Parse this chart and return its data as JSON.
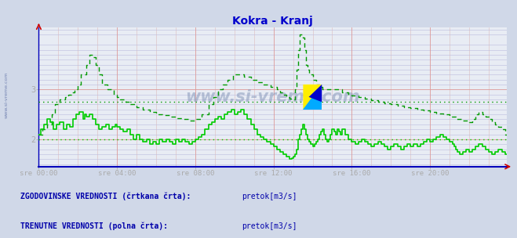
{
  "title": "Kokra - Kranj",
  "title_color": "#0000cc",
  "bg_color": "#d0d8e8",
  "plot_bg_color": "#e8ecf4",
  "axis_color": "#0000bb",
  "grid_color_major_h": "#dd9999",
  "grid_color_major_v": "#cc8888",
  "grid_color_minor_h": "#aaaacc",
  "grid_color_minor_v": "#ccaaaa",
  "ylim": [
    1.45,
    4.25
  ],
  "xlim": [
    0,
    287
  ],
  "xtick_labels": [
    "sre 00:00",
    "sre 04:00",
    "sre 08:00",
    "sre 12:00",
    "sre 16:00",
    "sre 20:00"
  ],
  "xtick_positions": [
    0,
    48,
    96,
    144,
    192,
    240
  ],
  "hist_line_color": "#009900",
  "curr_line_color": "#00cc00",
  "hist_avg": 2.76,
  "curr_avg": 2.0,
  "watermark": "www.si-vreme.com",
  "watermark_color": "#8899bb",
  "legend_text1": "ZGODOVINSKE VREDNOSTI (črtkana črta):",
  "legend_text2": "TRENUTNE VREDNOSTI (polna črta):",
  "legend_label": "pretok[m3/s]",
  "legend_color1": "#009900",
  "legend_color2": "#00bb00",
  "side_label": "www.si-vreme.com",
  "side_label_color": "#6677aa"
}
